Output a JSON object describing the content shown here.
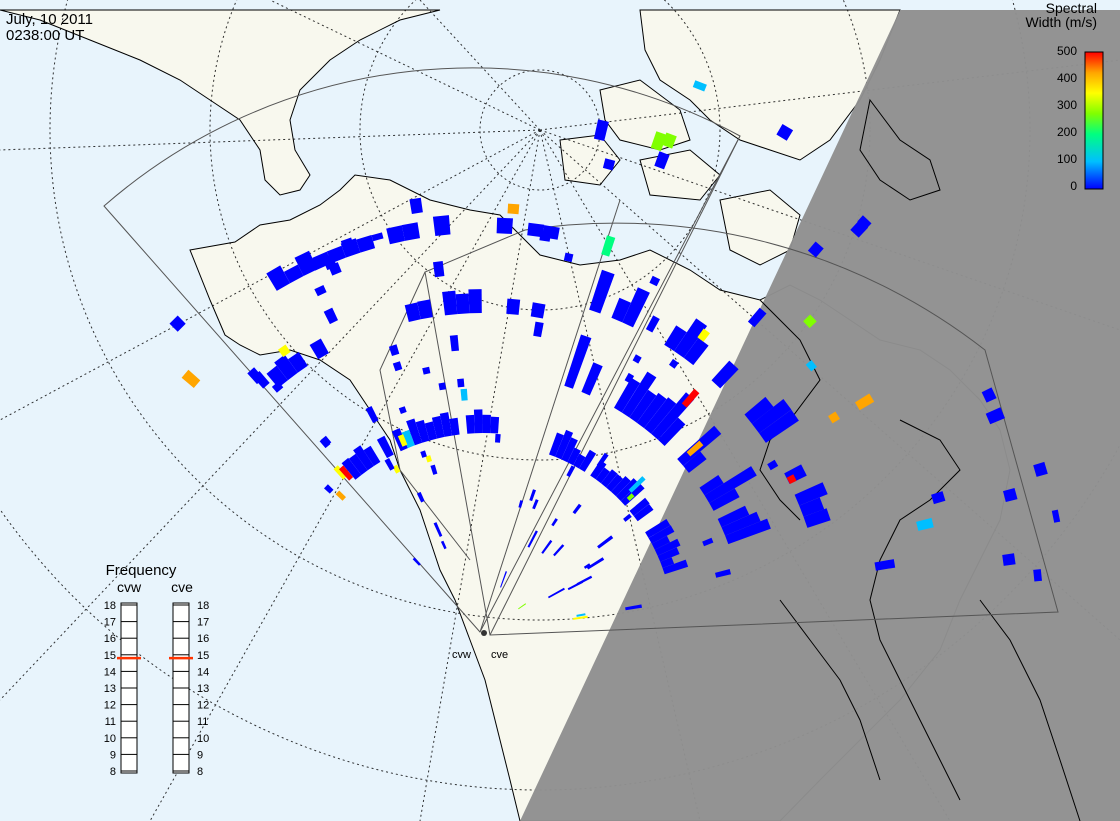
{
  "header": {
    "date": "July, 10 2011",
    "time": "0238:00 UT"
  },
  "colorbar": {
    "title_line1": "Spectral",
    "title_line2": "Width (m/s)",
    "ticks": [
      "500",
      "400",
      "300",
      "200",
      "100",
      "0"
    ],
    "range": [
      0,
      500
    ],
    "colors": [
      "#0000ff",
      "#00bfff",
      "#00ff80",
      "#80ff00",
      "#ffff00",
      "#ffa500",
      "#ff0000"
    ]
  },
  "frequency_panel": {
    "title": "Frequency",
    "left_label": "cvw",
    "right_label": "cve",
    "ticks": [
      "18",
      "17",
      "16",
      "15",
      "14",
      "13",
      "12",
      "11",
      "10",
      "9",
      "8"
    ],
    "cvw_value": 14.8,
    "cve_value": 14.8,
    "marker_color": "#ff3300"
  },
  "radars": [
    {
      "code": "cvw"
    },
    {
      "code": "cve"
    }
  ],
  "colors": {
    "ocean": "#e8f4fc",
    "land": "#f8f8ee",
    "night": "#909090",
    "coast": "#000000"
  }
}
